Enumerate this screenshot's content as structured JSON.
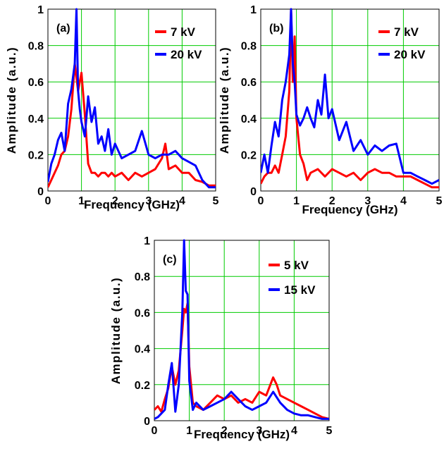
{
  "colors": {
    "series_a": "#ff0000",
    "series_b": "#0000ff",
    "grid": "#00cc00"
  },
  "chart_data": [
    {
      "panel": "(a)",
      "type": "line",
      "xlabel": "Frequency (GHz)",
      "ylabel": "Amplitude (a.u.)",
      "xlim": [
        0,
        5
      ],
      "ylim": [
        0,
        1
      ],
      "xticks": [
        "0",
        "1",
        "2",
        "3",
        "4",
        "5"
      ],
      "yticks": [
        "0",
        "0.2",
        "0.4",
        "0.6",
        "0.8",
        "1"
      ],
      "grid": true,
      "legend_position": "top-right",
      "series": [
        {
          "name": "7 kV",
          "color": "#ff0000",
          "x": [
            0,
            0.1,
            0.2,
            0.3,
            0.4,
            0.5,
            0.6,
            0.7,
            0.8,
            0.9,
            1.0,
            1.1,
            1.2,
            1.3,
            1.4,
            1.5,
            1.6,
            1.7,
            1.8,
            1.9,
            2.0,
            2.2,
            2.4,
            2.6,
            2.8,
            3.0,
            3.2,
            3.4,
            3.5,
            3.6,
            3.8,
            4.0,
            4.2,
            4.4,
            4.6,
            4.8,
            5.0
          ],
          "y": [
            0.02,
            0.06,
            0.1,
            0.14,
            0.2,
            0.22,
            0.3,
            0.45,
            0.7,
            0.55,
            0.65,
            0.42,
            0.15,
            0.1,
            0.1,
            0.08,
            0.1,
            0.1,
            0.08,
            0.1,
            0.08,
            0.1,
            0.06,
            0.1,
            0.08,
            0.1,
            0.12,
            0.18,
            0.26,
            0.12,
            0.14,
            0.1,
            0.1,
            0.06,
            0.05,
            0.03,
            0.03
          ]
        },
        {
          "name": "20 kV",
          "color": "#0000ff",
          "x": [
            0,
            0.1,
            0.2,
            0.3,
            0.4,
            0.5,
            0.6,
            0.7,
            0.8,
            0.85,
            0.9,
            0.95,
            1.0,
            1.1,
            1.2,
            1.3,
            1.4,
            1.5,
            1.6,
            1.7,
            1.8,
            1.9,
            2.0,
            2.2,
            2.4,
            2.6,
            2.8,
            3.0,
            3.2,
            3.4,
            3.6,
            3.8,
            4.0,
            4.2,
            4.4,
            4.6,
            4.8,
            5.0
          ],
          "y": [
            0.05,
            0.15,
            0.2,
            0.28,
            0.32,
            0.22,
            0.48,
            0.56,
            0.7,
            1.0,
            0.55,
            0.45,
            0.38,
            0.3,
            0.52,
            0.38,
            0.46,
            0.26,
            0.3,
            0.22,
            0.34,
            0.2,
            0.26,
            0.18,
            0.2,
            0.22,
            0.33,
            0.2,
            0.18,
            0.2,
            0.2,
            0.22,
            0.18,
            0.16,
            0.14,
            0.06,
            0.02,
            0.02
          ]
        }
      ]
    },
    {
      "panel": "(b)",
      "type": "line",
      "xlabel": "Frequency (GHz)",
      "ylabel": "Amplitude (a.u.)",
      "xlim": [
        0,
        5
      ],
      "ylim": [
        0,
        1
      ],
      "xticks": [
        "0",
        "1",
        "2",
        "3",
        "4",
        "5"
      ],
      "yticks": [
        "0",
        "0.2",
        "0.4",
        "0.6",
        "0.8",
        "1"
      ],
      "grid": true,
      "legend_position": "top-right",
      "series": [
        {
          "name": "7 kV",
          "color": "#ff0000",
          "x": [
            0,
            0.1,
            0.2,
            0.3,
            0.4,
            0.5,
            0.6,
            0.7,
            0.8,
            0.85,
            0.9,
            0.95,
            1.0,
            1.1,
            1.2,
            1.3,
            1.4,
            1.6,
            1.8,
            2.0,
            2.2,
            2.4,
            2.6,
            2.8,
            3.0,
            3.2,
            3.4,
            3.6,
            3.8,
            4.0,
            4.2,
            4.4,
            4.6,
            4.8,
            5.0
          ],
          "y": [
            0.04,
            0.08,
            0.1,
            0.1,
            0.14,
            0.1,
            0.2,
            0.3,
            0.55,
            1.0,
            0.6,
            0.85,
            0.4,
            0.2,
            0.15,
            0.06,
            0.1,
            0.12,
            0.08,
            0.12,
            0.1,
            0.08,
            0.1,
            0.06,
            0.1,
            0.12,
            0.1,
            0.1,
            0.08,
            0.08,
            0.08,
            0.06,
            0.04,
            0.02,
            0.02
          ]
        },
        {
          "name": "20 kV",
          "color": "#0000ff",
          "x": [
            0,
            0.1,
            0.2,
            0.3,
            0.4,
            0.5,
            0.6,
            0.7,
            0.8,
            0.85,
            0.9,
            0.95,
            1.0,
            1.1,
            1.2,
            1.3,
            1.4,
            1.5,
            1.6,
            1.7,
            1.8,
            1.9,
            2.0,
            2.2,
            2.4,
            2.6,
            2.8,
            3.0,
            3.2,
            3.4,
            3.6,
            3.8,
            4.0,
            4.2,
            4.4,
            4.6,
            4.8,
            5.0
          ],
          "y": [
            0.1,
            0.2,
            0.1,
            0.25,
            0.38,
            0.3,
            0.5,
            0.6,
            0.75,
            1.0,
            0.7,
            0.6,
            0.42,
            0.36,
            0.4,
            0.46,
            0.4,
            0.35,
            0.5,
            0.42,
            0.64,
            0.4,
            0.45,
            0.28,
            0.38,
            0.22,
            0.28,
            0.2,
            0.25,
            0.22,
            0.25,
            0.26,
            0.1,
            0.1,
            0.08,
            0.06,
            0.04,
            0.06
          ]
        }
      ]
    },
    {
      "panel": "(c)",
      "type": "line",
      "xlabel": "Frequency (GHz)",
      "ylabel": "Amplitude (a.u.)",
      "xlim": [
        0,
        5
      ],
      "ylim": [
        0,
        1
      ],
      "xticks": [
        "0",
        "1",
        "2",
        "3",
        "4",
        "5"
      ],
      "yticks": [
        "0",
        "0.2",
        "0.4",
        "0.6",
        "0.8",
        "1"
      ],
      "grid": true,
      "legend_position": "top-right",
      "series": [
        {
          "name": "5 kV",
          "color": "#ff0000",
          "x": [
            0,
            0.1,
            0.2,
            0.3,
            0.4,
            0.5,
            0.6,
            0.7,
            0.8,
            0.85,
            0.9,
            0.95,
            1.0,
            1.1,
            1.2,
            1.4,
            1.6,
            1.8,
            2.0,
            2.2,
            2.4,
            2.6,
            2.8,
            3.0,
            3.2,
            3.4,
            3.5,
            3.6,
            3.8,
            4.0,
            4.2,
            4.4,
            4.6,
            4.8,
            5.0
          ],
          "y": [
            0.06,
            0.08,
            0.05,
            0.12,
            0.18,
            0.3,
            0.2,
            0.28,
            0.5,
            0.62,
            0.6,
            0.65,
            0.3,
            0.1,
            0.08,
            0.06,
            0.1,
            0.14,
            0.12,
            0.14,
            0.1,
            0.12,
            0.1,
            0.16,
            0.14,
            0.24,
            0.2,
            0.14,
            0.12,
            0.1,
            0.08,
            0.06,
            0.04,
            0.02,
            0.01
          ]
        },
        {
          "name": "15 kV",
          "color": "#0000ff",
          "x": [
            0,
            0.1,
            0.2,
            0.3,
            0.4,
            0.5,
            0.6,
            0.7,
            0.8,
            0.85,
            0.9,
            0.95,
            1.0,
            1.1,
            1.2,
            1.4,
            1.6,
            1.8,
            2.0,
            2.2,
            2.4,
            2.6,
            2.8,
            3.0,
            3.2,
            3.4,
            3.6,
            3.8,
            4.0,
            4.2,
            4.4,
            4.6,
            4.8,
            5.0
          ],
          "y": [
            0.01,
            0.02,
            0.04,
            0.06,
            0.2,
            0.32,
            0.05,
            0.2,
            0.6,
            1.0,
            0.72,
            0.7,
            0.22,
            0.06,
            0.1,
            0.06,
            0.08,
            0.1,
            0.12,
            0.16,
            0.12,
            0.08,
            0.06,
            0.08,
            0.1,
            0.16,
            0.1,
            0.06,
            0.04,
            0.03,
            0.03,
            0.02,
            0.01,
            0.01
          ]
        }
      ]
    }
  ]
}
